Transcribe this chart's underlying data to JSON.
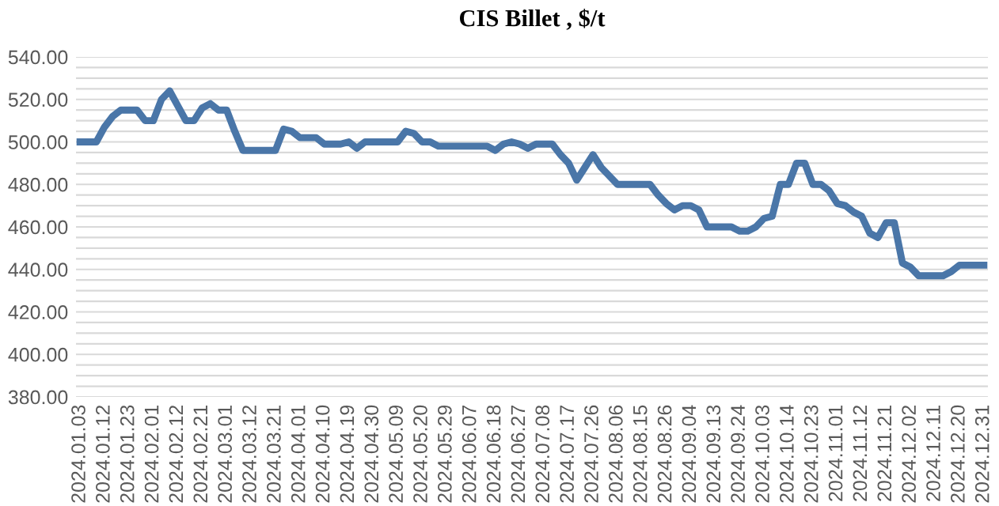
{
  "chart_data": {
    "type": "line",
    "title": "CIS Billet , $/t",
    "categories": [
      "2024.01.03",
      null,
      null,
      "2024.01.12",
      null,
      null,
      "2024.01.23",
      null,
      null,
      "2024.02.01",
      null,
      null,
      "2024.02.12",
      null,
      null,
      "2024.02.21",
      null,
      null,
      "2024.03.01",
      null,
      null,
      "2024.03.12",
      null,
      null,
      "2024.03.21",
      null,
      null,
      "2024.04.01",
      null,
      null,
      "2024.04.10",
      null,
      null,
      "2024.04.19",
      null,
      null,
      "2024.04.30",
      null,
      null,
      "2024.05.09",
      null,
      null,
      "2024.05.20",
      null,
      null,
      "2024.05.29",
      null,
      null,
      "2024.06.07",
      null,
      null,
      "2024.06.18",
      null,
      null,
      "2024.06.27",
      null,
      null,
      "2024.07.08",
      null,
      null,
      "2024.07.17",
      null,
      null,
      "2024.07.26",
      null,
      null,
      "2024.08.06",
      null,
      null,
      "2024.08.15",
      null,
      null,
      "2024.08.26",
      null,
      null,
      "2024.09.04",
      null,
      null,
      "2024.09.13",
      null,
      null,
      "2024.09.24",
      null,
      null,
      "2024.10.03",
      null,
      null,
      "2024.10.14",
      null,
      null,
      "2024.10.23",
      null,
      null,
      "2024.11.01",
      null,
      null,
      "2024.11.12",
      null,
      null,
      "2024.11.21",
      null,
      null,
      "2024.12.02",
      null,
      null,
      "2024.12.11",
      null,
      null,
      "2024.12.20",
      null,
      null,
      "2024.12.31"
    ],
    "series": [
      {
        "color": "#4a76a8",
        "values": [
          500,
          500,
          500,
          507,
          512,
          515,
          515,
          515,
          510,
          510,
          520,
          524,
          517,
          510,
          510,
          516,
          518,
          515,
          515,
          505,
          496,
          496,
          496,
          496,
          496,
          506,
          505,
          502,
          502,
          502,
          499,
          499,
          499,
          500,
          497,
          500,
          500,
          500,
          500,
          500,
          505,
          504,
          500,
          500,
          498,
          498,
          498,
          498,
          498,
          498,
          498,
          496,
          499,
          500,
          499,
          497,
          499,
          499,
          499,
          494,
          490,
          482,
          488,
          494,
          488,
          484,
          480,
          480,
          480,
          480,
          480,
          475,
          471,
          468,
          470,
          470,
          468,
          460,
          460,
          460,
          460,
          458,
          458,
          460,
          464,
          465,
          480,
          480,
          490,
          490,
          480,
          480,
          477,
          471,
          470,
          467,
          465,
          457,
          455,
          462,
          462,
          443,
          441,
          437,
          437,
          437,
          437,
          439,
          442,
          442,
          442,
          442
        ]
      }
    ],
    "ylim": [
      380,
      540
    ],
    "yticks": [
      {
        "value": 380,
        "label": "380.00"
      },
      {
        "value": 385,
        "label": null
      },
      {
        "value": 390,
        "label": null
      },
      {
        "value": 395,
        "label": null
      },
      {
        "value": 400,
        "label": "400.00"
      },
      {
        "value": 405,
        "label": null
      },
      {
        "value": 410,
        "label": null
      },
      {
        "value": 415,
        "label": null
      },
      {
        "value": 420,
        "label": "420.00"
      },
      {
        "value": 425,
        "label": null
      },
      {
        "value": 430,
        "label": null
      },
      {
        "value": 435,
        "label": null
      },
      {
        "value": 440,
        "label": "440.00"
      },
      {
        "value": 445,
        "label": null
      },
      {
        "value": 450,
        "label": null
      },
      {
        "value": 455,
        "label": null
      },
      {
        "value": 460,
        "label": "460.00"
      },
      {
        "value": 465,
        "label": null
      },
      {
        "value": 470,
        "label": null
      },
      {
        "value": 475,
        "label": null
      },
      {
        "value": 480,
        "label": "480.00"
      },
      {
        "value": 485,
        "label": null
      },
      {
        "value": 490,
        "label": null
      },
      {
        "value": 495,
        "label": null
      },
      {
        "value": 500,
        "label": "500.00"
      },
      {
        "value": 505,
        "label": null
      },
      {
        "value": 510,
        "label": null
      },
      {
        "value": 515,
        "label": null
      },
      {
        "value": 520,
        "label": "520.00"
      },
      {
        "value": 525,
        "label": null
      },
      {
        "value": 530,
        "label": null
      },
      {
        "value": 535,
        "label": null
      },
      {
        "value": 540,
        "label": "540.00"
      }
    ],
    "grid": "y",
    "marker": "none",
    "line_style": "solid"
  }
}
